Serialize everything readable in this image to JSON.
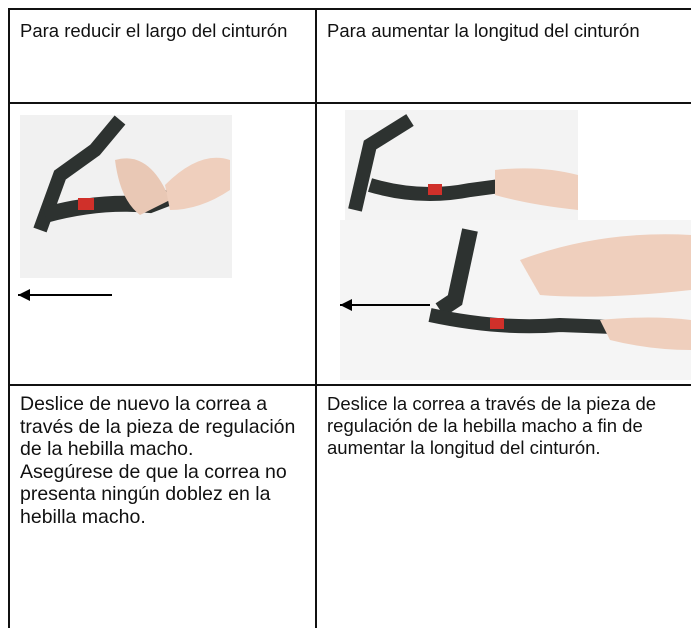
{
  "table": {
    "header": [
      "Para reducir el largo del cinturón",
      "Para aumentar la longitud del cinturón"
    ],
    "instructions": [
      [
        "Deslice de nuevo la correa a través de la pieza de regulación de la hebilla macho.",
        "Asegúrese de que la correa no presenta ningún doblez en la hebilla macho."
      ],
      [
        "Deslice la correa a través de la pieza de regulación de la hebilla macho a fin de aumentar la longitud del cinturón."
      ]
    ]
  }
}
